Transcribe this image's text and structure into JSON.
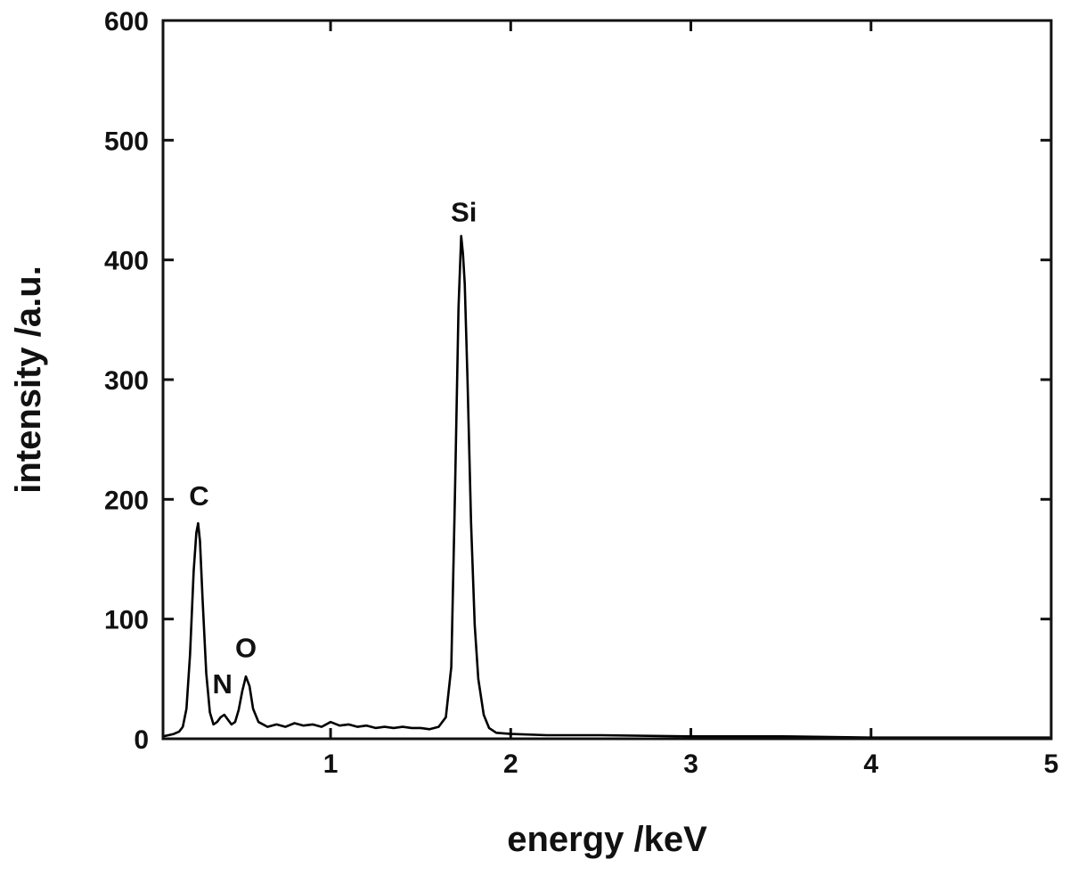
{
  "chart_data": {
    "type": "line",
    "title": "",
    "xlabel": "energy /keV",
    "ylabel": "intensity /a.u.",
    "xlim": [
      0.07,
      5.0
    ],
    "ylim": [
      0,
      600
    ],
    "x_ticks": [
      1,
      2,
      3,
      4,
      5
    ],
    "y_ticks": [
      0,
      100,
      200,
      300,
      400,
      500,
      600
    ],
    "grid": false,
    "legend": "none",
    "line_color": "#000000",
    "series": [
      {
        "points": [
          [
            0.07,
            2
          ],
          [
            0.1,
            3
          ],
          [
            0.13,
            4
          ],
          [
            0.16,
            6
          ],
          [
            0.18,
            10
          ],
          [
            0.2,
            25
          ],
          [
            0.22,
            70
          ],
          [
            0.24,
            140
          ],
          [
            0.255,
            172
          ],
          [
            0.265,
            180
          ],
          [
            0.275,
            165
          ],
          [
            0.29,
            115
          ],
          [
            0.31,
            55
          ],
          [
            0.33,
            22
          ],
          [
            0.35,
            12
          ],
          [
            0.37,
            14
          ],
          [
            0.39,
            18
          ],
          [
            0.41,
            20
          ],
          [
            0.43,
            16
          ],
          [
            0.45,
            12
          ],
          [
            0.47,
            14
          ],
          [
            0.49,
            24
          ],
          [
            0.51,
            40
          ],
          [
            0.53,
            52
          ],
          [
            0.55,
            44
          ],
          [
            0.57,
            25
          ],
          [
            0.6,
            14
          ],
          [
            0.65,
            10
          ],
          [
            0.7,
            12
          ],
          [
            0.75,
            10
          ],
          [
            0.8,
            13
          ],
          [
            0.85,
            11
          ],
          [
            0.9,
            12
          ],
          [
            0.95,
            10
          ],
          [
            1.0,
            14
          ],
          [
            1.05,
            11
          ],
          [
            1.1,
            12
          ],
          [
            1.15,
            10
          ],
          [
            1.2,
            11
          ],
          [
            1.25,
            9
          ],
          [
            1.3,
            10
          ],
          [
            1.35,
            9
          ],
          [
            1.4,
            10
          ],
          [
            1.45,
            9
          ],
          [
            1.5,
            9
          ],
          [
            1.55,
            8
          ],
          [
            1.6,
            10
          ],
          [
            1.64,
            18
          ],
          [
            1.67,
            60
          ],
          [
            1.69,
            200
          ],
          [
            1.71,
            360
          ],
          [
            1.725,
            420
          ],
          [
            1.735,
            405
          ],
          [
            1.745,
            380
          ],
          [
            1.76,
            300
          ],
          [
            1.78,
            180
          ],
          [
            1.8,
            95
          ],
          [
            1.82,
            50
          ],
          [
            1.85,
            20
          ],
          [
            1.88,
            9
          ],
          [
            1.92,
            5
          ],
          [
            2.0,
            4
          ],
          [
            2.2,
            3
          ],
          [
            2.5,
            3
          ],
          [
            3.0,
            2
          ],
          [
            3.5,
            2
          ],
          [
            4.0,
            1
          ],
          [
            4.5,
            1
          ],
          [
            5.0,
            1
          ]
        ]
      }
    ],
    "annotations": [
      {
        "text": "C",
        "x": 0.27,
        "y": 195
      },
      {
        "text": "N",
        "x": 0.4,
        "y": 38
      },
      {
        "text": "O",
        "x": 0.53,
        "y": 68
      },
      {
        "text": "Si",
        "x": 1.74,
        "y": 432
      }
    ]
  }
}
